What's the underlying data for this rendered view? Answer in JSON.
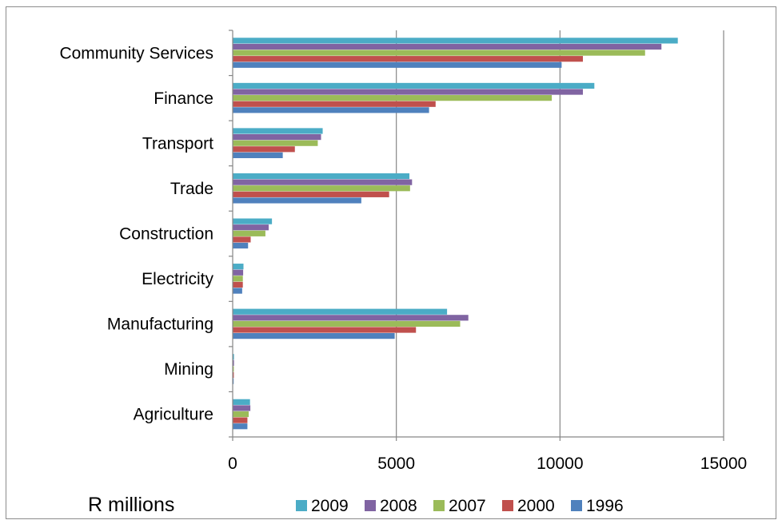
{
  "chart_data": {
    "type": "bar",
    "orientation": "horizontal",
    "categories": [
      "Community Services",
      "Finance",
      "Transport",
      "Trade",
      "Construction",
      "Electricity",
      "Manufacturing",
      "Mining",
      "Agriculture"
    ],
    "series": [
      {
        "name": "2009",
        "color": "#4bacc6",
        "values": [
          13600,
          11050,
          2750,
          5400,
          1200,
          330,
          6550,
          40,
          530
        ]
      },
      {
        "name": "2008",
        "color": "#8064a2",
        "values": [
          13100,
          10700,
          2700,
          5480,
          1100,
          320,
          7200,
          40,
          540
        ]
      },
      {
        "name": "2007",
        "color": "#9bbb59",
        "values": [
          12600,
          9750,
          2600,
          5420,
          1000,
          310,
          6950,
          35,
          490
        ]
      },
      {
        "name": "2000",
        "color": "#c0504d",
        "values": [
          10700,
          6200,
          1900,
          4780,
          550,
          310,
          5600,
          35,
          450
        ]
      },
      {
        "name": "1996",
        "color": "#4f81bd",
        "values": [
          10050,
          6000,
          1530,
          3930,
          470,
          290,
          4950,
          30,
          450
        ]
      }
    ],
    "xlim": [
      0,
      15000
    ],
    "xticks": [
      "0",
      "5000",
      "10000",
      "15000"
    ],
    "xlabel": "R millions",
    "grid": "vertical",
    "legend_position": "bottom"
  }
}
